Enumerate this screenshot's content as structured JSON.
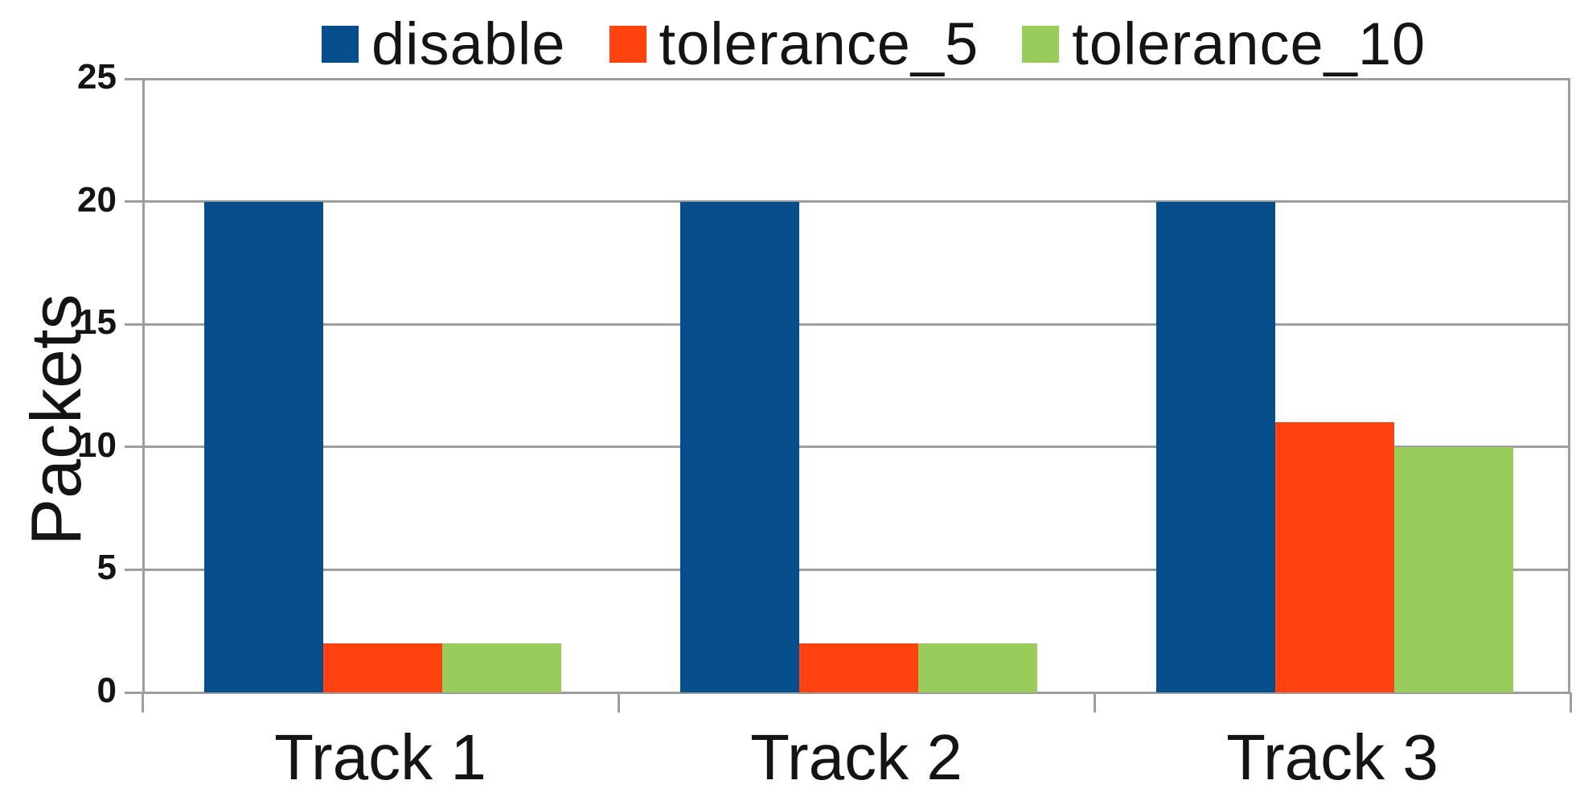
{
  "chart_data": {
    "type": "bar",
    "title": "",
    "categories": [
      "Track 1",
      "Track 2",
      "Track 3"
    ],
    "series": [
      {
        "name": "disable",
        "color": "#074e8c",
        "values": [
          20,
          20,
          20
        ]
      },
      {
        "name": "tolerance_5",
        "color": "#ff420e",
        "values": [
          2,
          2,
          11
        ]
      },
      {
        "name": "tolerance_10",
        "color": "#99cc5a",
        "values": [
          2,
          2,
          10
        ]
      }
    ],
    "xlabel": "",
    "ylabel": "Packets",
    "ylim": [
      0,
      25
    ],
    "yticks": [
      0,
      5,
      10,
      15,
      20,
      25
    ],
    "grid": true,
    "legend_position": "top"
  },
  "colors": {
    "grid": "#9e9e9e",
    "text": "#141414",
    "background": "#ffffff"
  }
}
